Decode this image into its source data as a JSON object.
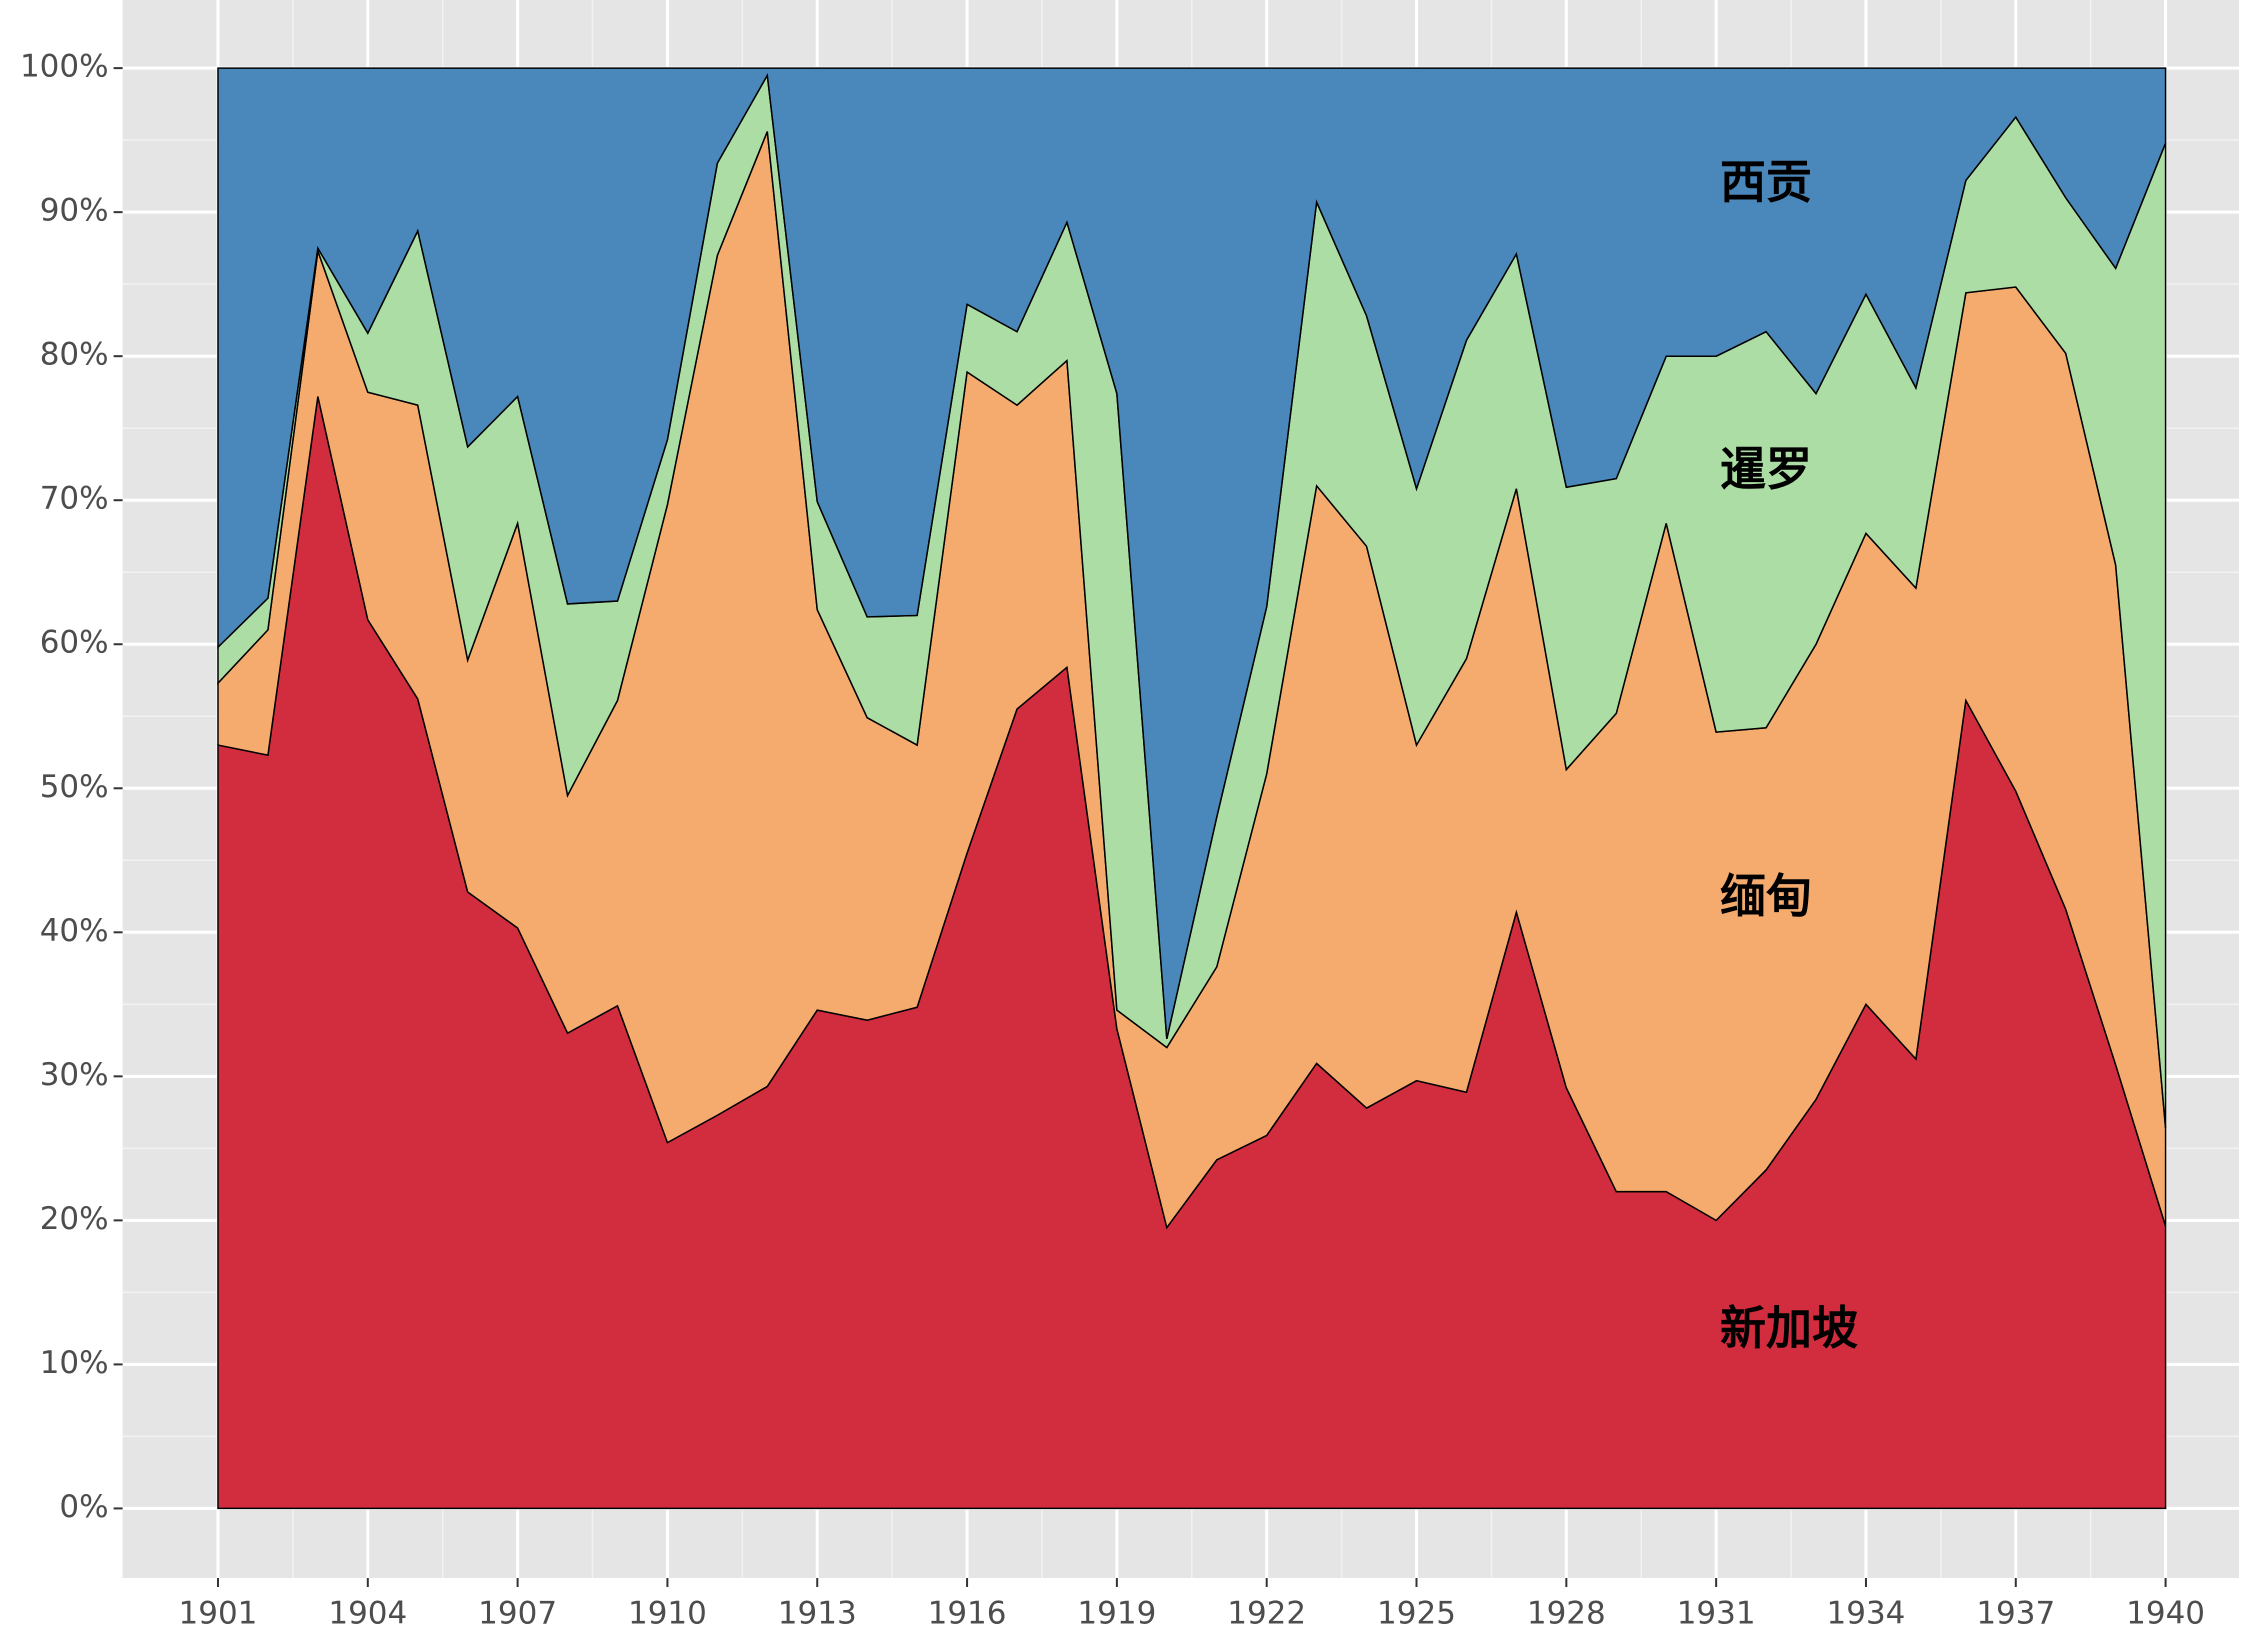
{
  "chart_data": {
    "type": "area",
    "stacked": true,
    "x": [
      1901,
      1902,
      1903,
      1904,
      1905,
      1906,
      1907,
      1908,
      1909,
      1910,
      1911,
      1912,
      1913,
      1914,
      1915,
      1916,
      1917,
      1918,
      1919,
      1920,
      1921,
      1922,
      1923,
      1924,
      1925,
      1926,
      1927,
      1928,
      1929,
      1930,
      1931,
      1932,
      1933,
      1934,
      1935,
      1936,
      1937,
      1938,
      1939,
      1940
    ],
    "series": [
      {
        "name": "新加坡",
        "color": "#d12d3e",
        "values": [
          53,
          52.3,
          77.2,
          61.7,
          56.2,
          42.8,
          40.3,
          33,
          34.9,
          25.4,
          27.3,
          29.3,
          34.6,
          33.9,
          34.8,
          45.5,
          55.5,
          58.4,
          33.3,
          19.5,
          24.2,
          25.9,
          30.9,
          27.8,
          29.7,
          28.9,
          41.4,
          29.2,
          22,
          22,
          20,
          23.5,
          28.4,
          35,
          31.2,
          56.1,
          49.8,
          41.6,
          30.8,
          19.6
        ]
      },
      {
        "name": "缅甸",
        "color": "#f5ab6d",
        "values": [
          4.3,
          8.7,
          10.1,
          15.8,
          20.4,
          16.1,
          28.1,
          16.5,
          21.2,
          44.3,
          59.7,
          66.3,
          27.8,
          21,
          18.2,
          33.4,
          21.1,
          21.3,
          1.3,
          12.5,
          13.4,
          25.1,
          40.1,
          39,
          23.3,
          30.1,
          29.4,
          22.1,
          33.2,
          46.4,
          33.9,
          30.7,
          31.6,
          32.7,
          32.7,
          28.3,
          35,
          38.6,
          34.7,
          6.8
        ]
      },
      {
        "name": "暹罗",
        "color": "#abdda4",
        "values": [
          2.5,
          2.2,
          0.2,
          4.1,
          12.1,
          14.8,
          8.8,
          13.3,
          6.9,
          4.5,
          6.4,
          3.9,
          7.5,
          7,
          9,
          4.7,
          5.1,
          9.6,
          42.8,
          0.6,
          10.4,
          11.6,
          19.7,
          16,
          17.8,
          22.1,
          16.3,
          19.6,
          16.3,
          11.6,
          26.1,
          27.5,
          17.4,
          16.6,
          13.9,
          7.8,
          11.8,
          10.8,
          20.6,
          68.4
        ]
      },
      {
        "name": "西贡",
        "color": "#4a87ba",
        "values": [
          40.2,
          36.8,
          12.5,
          18.4,
          11.3,
          26.3,
          22.8,
          37.2,
          37,
          25.8,
          6.6,
          0.5,
          30.1,
          38.1,
          38,
          16.4,
          18.3,
          10.7,
          22.6,
          67.4,
          52,
          37.4,
          9.3,
          17.2,
          29.2,
          18.9,
          12.9,
          29.1,
          28.5,
          20,
          20,
          18.3,
          22.6,
          15.7,
          22.2,
          7.8,
          3.4,
          9,
          13.9,
          5.2
        ]
      }
    ],
    "xlim": [
      1899.09,
      1941.47
    ],
    "xticks": [
      1901,
      1904,
      1907,
      1910,
      1913,
      1916,
      1919,
      1922,
      1925,
      1928,
      1931,
      1934,
      1937,
      1940
    ],
    "ylim": [
      -4.83,
      104.73
    ],
    "yticks": [
      {
        "value": 0,
        "label": "0%"
      },
      {
        "value": 10,
        "label": "10%"
      },
      {
        "value": 20,
        "label": "20%"
      },
      {
        "value": 30,
        "label": "30%"
      },
      {
        "value": 40,
        "label": "40%"
      },
      {
        "value": 50,
        "label": "50%"
      },
      {
        "value": 60,
        "label": "60%"
      },
      {
        "value": 70,
        "label": "70%"
      },
      {
        "value": 80,
        "label": "80%"
      },
      {
        "value": 90,
        "label": "90%"
      },
      {
        "value": 100,
        "label": "100%"
      }
    ],
    "grid": true
  }
}
